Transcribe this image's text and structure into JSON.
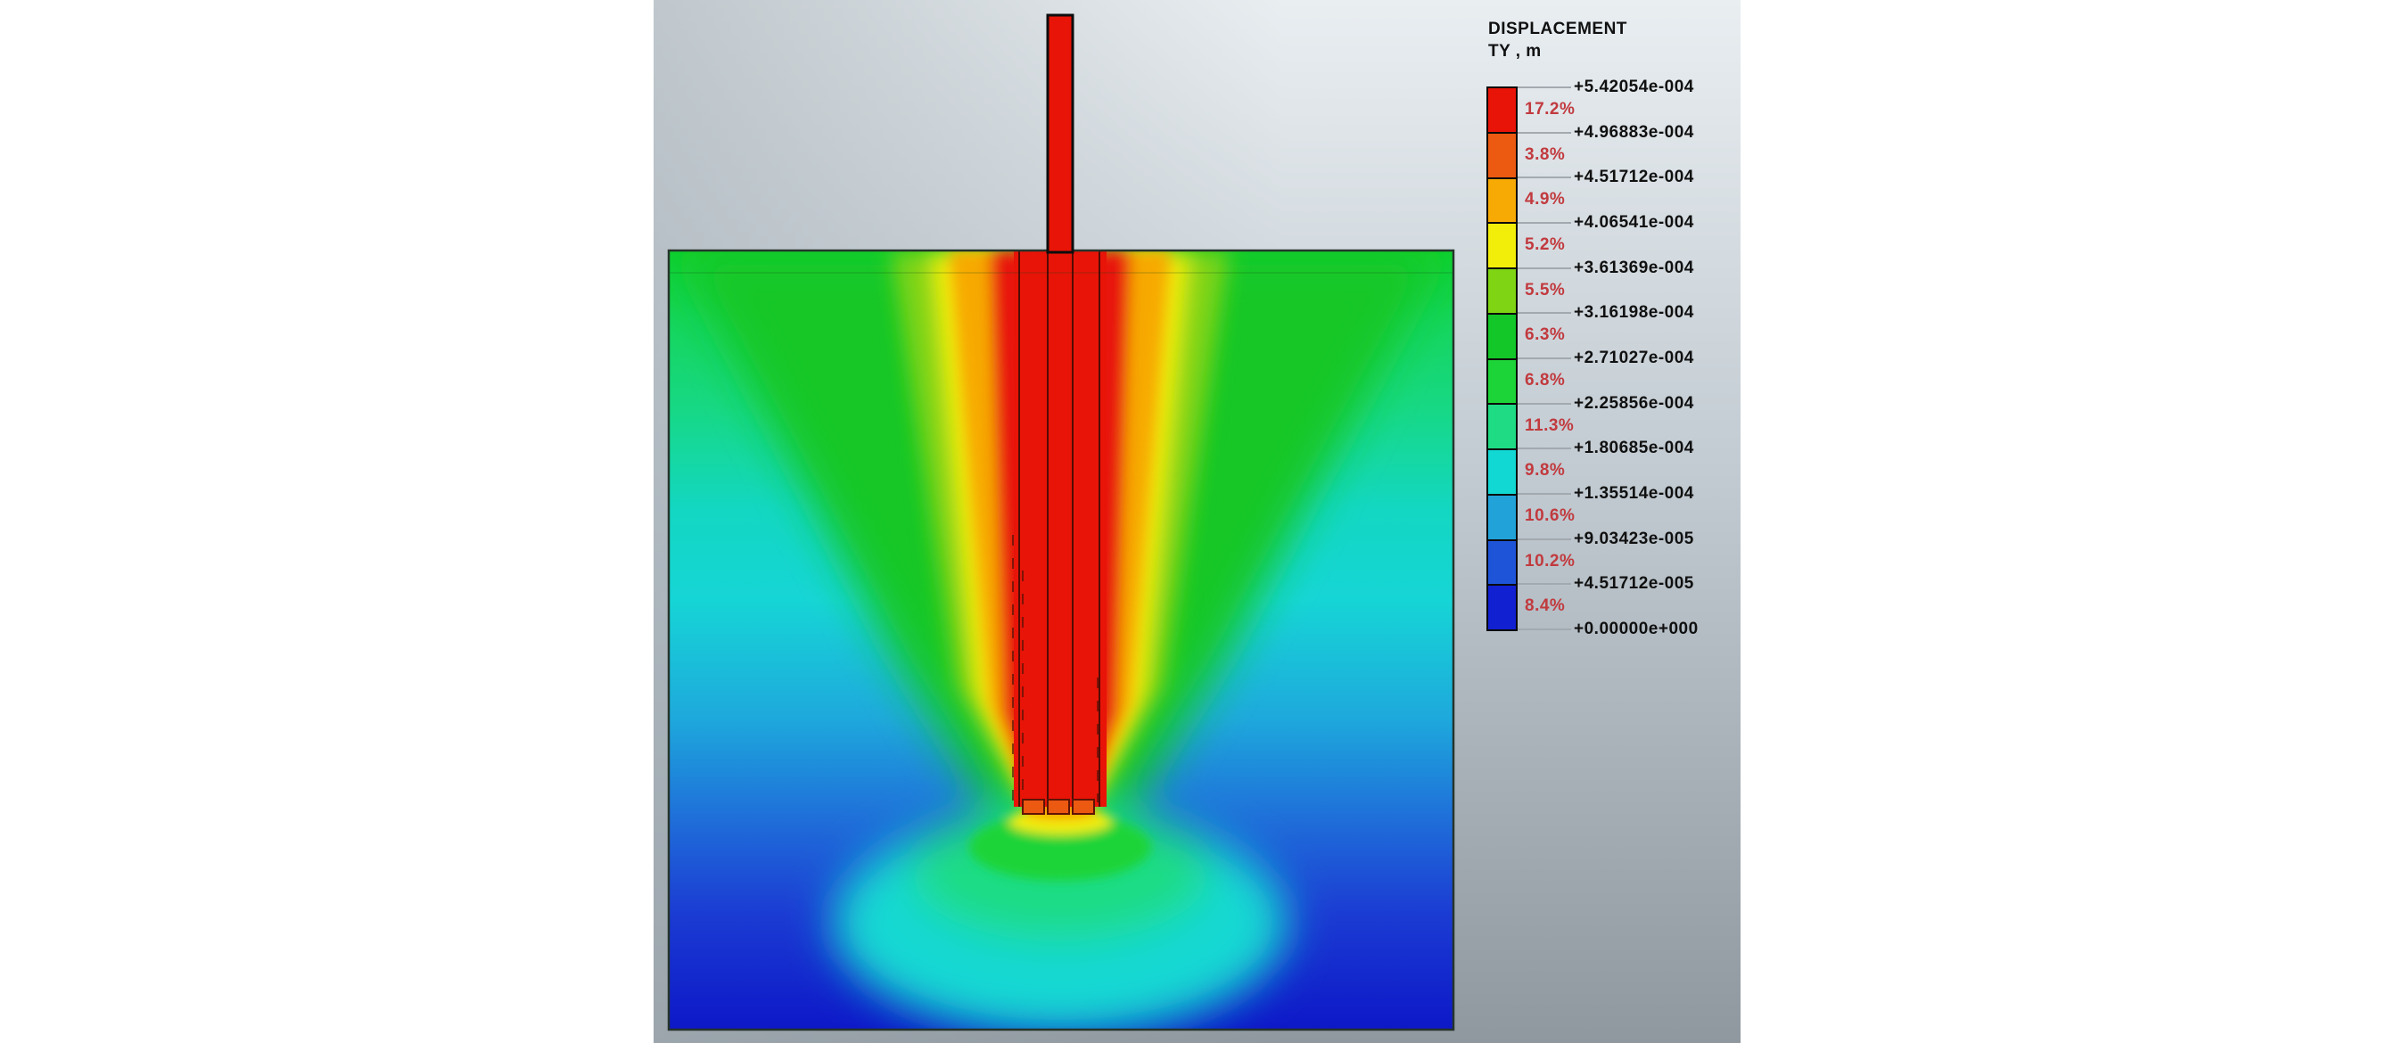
{
  "legend": {
    "title_line1": "DISPLACEMENT",
    "title_line2": "TY , m",
    "values": [
      "+5.42054e-004",
      "+4.96883e-004",
      "+4.51712e-004",
      "+4.06541e-004",
      "+3.61369e-004",
      "+3.16198e-004",
      "+2.71027e-004",
      "+2.25856e-004",
      "+1.80685e-004",
      "+1.35514e-004",
      "+9.03423e-005",
      "+4.51712e-005",
      "+0.00000e+000"
    ],
    "bands": [
      {
        "color": "#e81408",
        "percent": "17.2%"
      },
      {
        "color": "#ec5911",
        "percent": "3.8%"
      },
      {
        "color": "#f7a904",
        "percent": "4.9%"
      },
      {
        "color": "#f2ee0a",
        "percent": "5.2%"
      },
      {
        "color": "#7fd413",
        "percent": "5.5%"
      },
      {
        "color": "#12c727",
        "percent": "6.3%"
      },
      {
        "color": "#1dd438",
        "percent": "6.8%"
      },
      {
        "color": "#1fdc84",
        "percent": "11.3%"
      },
      {
        "color": "#12d8d3",
        "percent": "9.8%"
      },
      {
        "color": "#21a3da",
        "percent": "10.6%"
      },
      {
        "color": "#1e55d8",
        "percent": "10.2%"
      },
      {
        "color": "#1120d0",
        "percent": "8.4%"
      }
    ]
  },
  "chart_data": {
    "type": "heatmap",
    "title": "DISPLACEMENT",
    "component": "TY",
    "unit": "m",
    "scale_max": 0.000542054,
    "scale_min": 0.0,
    "scale_boundaries": [
      0.000542054,
      0.000496883,
      0.000451712,
      0.000406541,
      0.000361369,
      0.000316198,
      0.000271027,
      0.000225856,
      0.000180685,
      0.000135514,
      9.03423e-05,
      4.51712e-05,
      0.0
    ],
    "band_percentages": [
      17.2,
      3.8,
      4.9,
      5.2,
      5.5,
      6.3,
      6.8,
      11.3,
      9.8,
      10.6,
      10.2,
      8.4
    ],
    "band_colors": [
      "#e81408",
      "#ec5911",
      "#f7a904",
      "#f2ee0a",
      "#7fd413",
      "#12c727",
      "#1dd438",
      "#1fdc84",
      "#12d8d3",
      "#21a3da",
      "#1e55d8",
      "#1120d0"
    ],
    "legend_position": "right",
    "scene": "Smooth-shaded vertical displacement contour of a pile group in a square soil block; a red loaded column protrudes above the soil surface, maximum displacement (red) along the piles, fanning out through orange/yellow/green bands, cyan at mid depth, zero (dark blue) at the block base"
  }
}
